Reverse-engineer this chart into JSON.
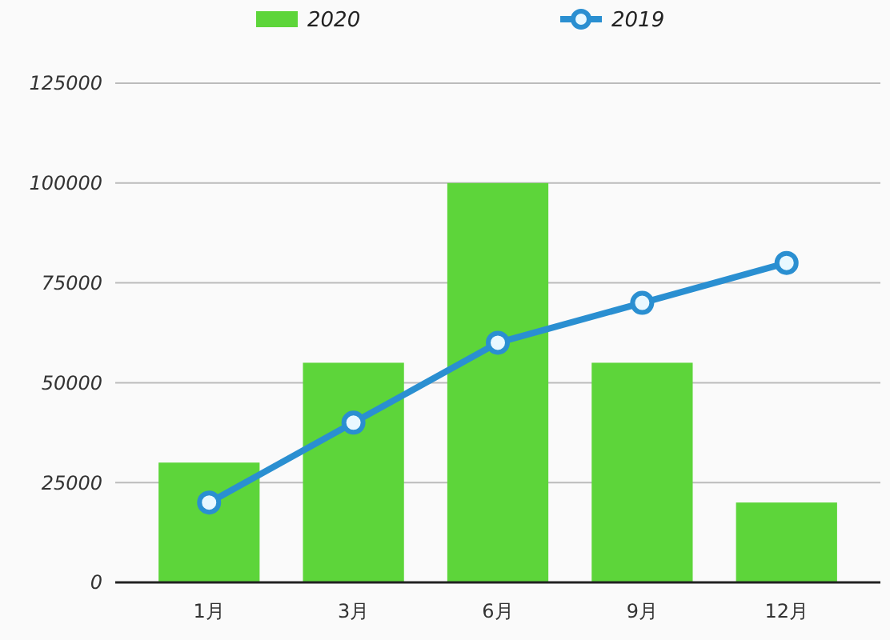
{
  "chart_data": {
    "type": "bar",
    "categories": [
      "1月",
      "3月",
      "6月",
      "9月",
      "12月"
    ],
    "series": [
      {
        "name": "2020",
        "color": "#5dd53a",
        "values": [
          30000,
          55000,
          100000,
          55000,
          20000
        ]
      },
      {
        "name": "2019",
        "type": "line",
        "color": "#2a8fd1",
        "values": [
          20000,
          40000,
          60000,
          70000,
          80000
        ]
      }
    ],
    "ylim": [
      0,
      125000
    ],
    "yticks": [
      0,
      25000,
      50000,
      75000,
      100000,
      125000
    ],
    "grid": "y",
    "legend": "top",
    "marker": "circle"
  }
}
